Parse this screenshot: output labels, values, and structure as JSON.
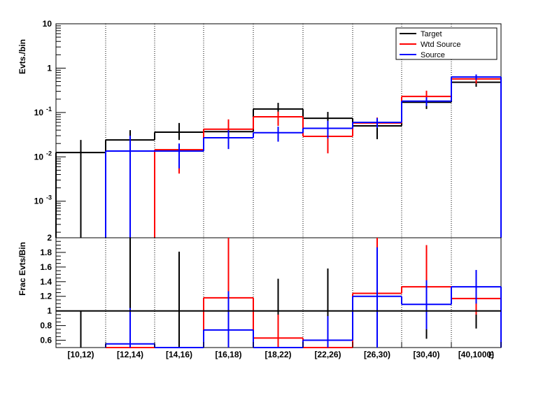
{
  "chart_data": [
    {
      "type": "line",
      "style": "step-histogram",
      "ylabel": "Evts./bin",
      "yscale": "log",
      "ylim": [
        0.00015,
        10
      ],
      "y_ticks": [
        {
          "value": 10,
          "label": "10"
        },
        {
          "value": 1,
          "label": "1"
        },
        {
          "value": 0.1,
          "label": "10",
          "exp": "-1"
        },
        {
          "value": 0.01,
          "label": "10",
          "exp": "-2"
        },
        {
          "value": 0.001,
          "label": "10",
          "exp": "-3"
        }
      ],
      "grid": "vertical-dotted-at-bin-edges",
      "legend": {
        "position": "top-right",
        "entries": [
          {
            "label": "Target",
            "color": "#000000"
          },
          {
            "label": "Wtd Source",
            "color": "#ff0000"
          },
          {
            "label": "Source",
            "color": "#0000ff"
          }
        ]
      },
      "categories": [
        "[10,12)",
        "[12,14)",
        "[14,16)",
        "[16,18)",
        "[18,22)",
        "[22,26)",
        "[26,30)",
        "[30,40)",
        "[40,1000)"
      ],
      "series": [
        {
          "name": "Target",
          "color": "#000000",
          "values": [
            0.0125,
            0.024,
            0.036,
            0.037,
            0.12,
            0.074,
            0.05,
            0.17,
            0.48
          ],
          "err_low": [
            0.00015,
            0.012,
            0.024,
            0.026,
            0.08,
            0.036,
            0.025,
            0.12,
            0.38
          ],
          "err_high": [
            0.024,
            0.04,
            0.058,
            0.065,
            0.165,
            0.103,
            0.07,
            0.23,
            0.62
          ]
        },
        {
          "name": "Wtd Source",
          "color": "#ff0000",
          "values": [
            null,
            null,
            0.0145,
            0.042,
            0.08,
            0.029,
            0.058,
            0.23,
            0.57
          ],
          "err_low": [
            null,
            null,
            0.0042,
            0.025,
            0.05,
            0.012,
            0.046,
            0.16,
            0.45
          ],
          "err_high": [
            null,
            null,
            0.0145,
            0.07,
            0.105,
            0.045,
            0.077,
            0.31,
            0.67
          ]
        },
        {
          "name": "Source",
          "color": "#0000ff",
          "values": [
            null,
            0.0135,
            0.0135,
            0.027,
            0.035,
            0.044,
            0.06,
            0.18,
            0.63
          ],
          "err_low": [
            null,
            0.00015,
            0.0055,
            0.015,
            0.022,
            0.026,
            0.045,
            0.14,
            0.55
          ],
          "err_high": [
            null,
            0.03,
            0.02,
            0.04,
            0.048,
            0.065,
            0.075,
            0.22,
            0.72
          ]
        }
      ]
    },
    {
      "type": "line",
      "style": "step-histogram",
      "ylabel": "Frac Evts/Bin",
      "ylim": [
        0.5,
        2.0
      ],
      "y_ticks": [
        "0.6",
        "0.8",
        "1",
        "1.2",
        "1.4",
        "1.6",
        "1.8",
        "2"
      ],
      "reference_line": 1,
      "categories": [
        "[10,12)",
        "[12,14)",
        "[14,16)",
        "[16,18)",
        "[18,22)",
        "[22,26)",
        "[26,30)",
        "[30,40)",
        "[40,1000)"
      ],
      "xlabel": "E",
      "series": [
        {
          "role": "Target",
          "color": "#000000",
          "values": [
            null,
            null,
            null,
            null,
            null,
            null,
            null,
            null,
            null
          ],
          "err_low": [
            0.5,
            0.5,
            0.5,
            null,
            0.5,
            0.5,
            null,
            0.62,
            0.76
          ],
          "err_high": [
            1.0,
            2.0,
            1.81,
            null,
            1.44,
            1.58,
            null,
            1.0,
            1.0
          ]
        },
        {
          "role": "Wtd Source",
          "color": "#ff0000",
          "values": [
            null,
            0.5,
            null,
            1.18,
            0.63,
            0.5,
            1.24,
            1.33,
            1.17
          ],
          "err_low": [
            null,
            null,
            null,
            0.75,
            0.5,
            null,
            0.5,
            0.85,
            0.95
          ],
          "err_high": [
            null,
            null,
            null,
            2.0,
            0.95,
            null,
            2.0,
            1.9,
            1.4
          ]
        },
        {
          "role": "Source",
          "color": "#0000ff",
          "values": [
            null,
            0.55,
            0.5,
            0.74,
            0.5,
            0.6,
            1.2,
            1.09,
            1.33
          ],
          "err_low": [
            null,
            0.5,
            null,
            0.5,
            null,
            0.5,
            0.5,
            0.75,
            1.1
          ],
          "err_high": [
            null,
            1.04,
            null,
            1.27,
            null,
            0.93,
            1.87,
            1.42,
            1.56
          ]
        }
      ]
    }
  ]
}
